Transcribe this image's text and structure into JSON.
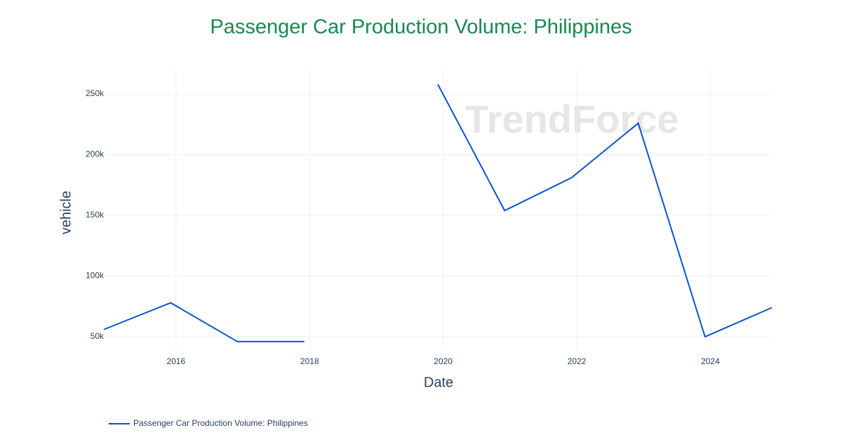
{
  "chart_data": {
    "type": "line",
    "title": "Passenger Car Production Volume: Philippines",
    "watermark": "TrendForce",
    "x_label": "Date",
    "y_label": "vehicle",
    "x": [
      2014.92,
      2015.92,
      2016.92,
      2017.92,
      2018.92,
      2019.92,
      2020.92,
      2021.92,
      2022.92,
      2023.92,
      2024.92
    ],
    "series": [
      {
        "name": "Passenger Car Production Volume: Philippines",
        "color": "#0b52d0",
        "values": [
          56000,
          78000,
          46000,
          46000,
          null,
          258000,
          154000,
          181000,
          226000,
          50000,
          74000
        ]
      }
    ],
    "xlim": [
      2014.92,
      2024.92
    ],
    "xticks": [
      2016,
      2018,
      2020,
      2022,
      2024
    ],
    "ylim": [
      39600,
      269700
    ],
    "yticks": [
      {
        "value": 50000,
        "label": "50k"
      },
      {
        "value": 100000,
        "label": "100k"
      },
      {
        "value": 150000,
        "label": "150k"
      },
      {
        "value": 200000,
        "label": "200k"
      },
      {
        "value": 250000,
        "label": "250k"
      }
    ],
    "grid": true
  }
}
